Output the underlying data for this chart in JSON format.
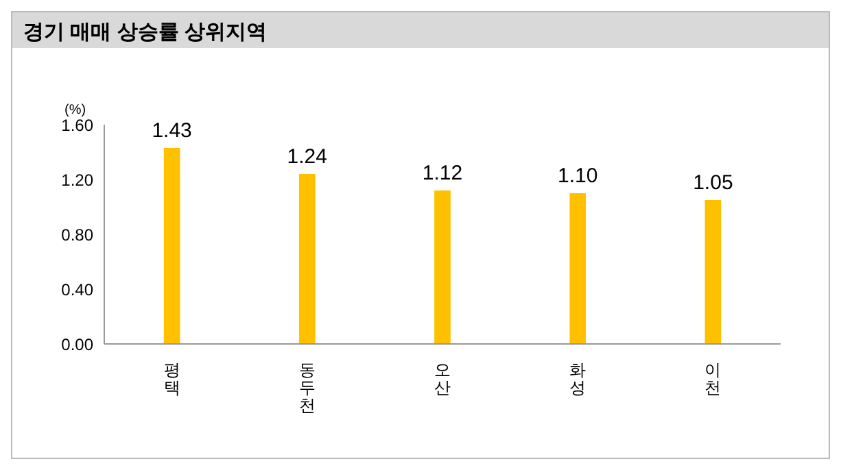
{
  "chart_data": {
    "type": "bar",
    "title": "경기 매매 상승률 상위지역",
    "ylabel": "(%)",
    "categories": [
      "평택",
      "동두천",
      "오산",
      "화성",
      "이천"
    ],
    "values": [
      1.43,
      1.24,
      1.12,
      1.1,
      1.05
    ],
    "color": "#ffc000",
    "value_labels": [
      "1.43",
      "1.24",
      "1.12",
      "1.10",
      "1.05"
    ],
    "ylim": [
      0,
      1.6
    ],
    "yticks": [
      {
        "value": 0,
        "label": "0.00"
      },
      {
        "value": 0.4,
        "label": "0.40"
      },
      {
        "value": 0.8,
        "label": "0.80"
      },
      {
        "value": 1.2,
        "label": "1.20"
      },
      {
        "value": 1.6,
        "label": "1.60"
      }
    ],
    "grid": false,
    "legend": false
  }
}
